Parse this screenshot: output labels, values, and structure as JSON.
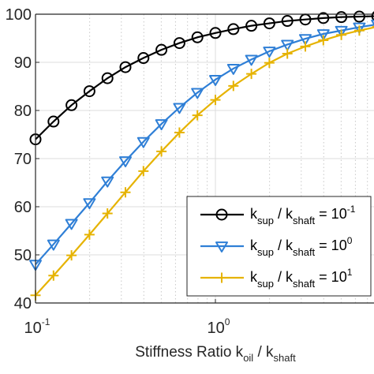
{
  "chart_data": {
    "type": "line",
    "x_scale": "log",
    "xlabel": {
      "base": "Stiffness Ratio k",
      "sub1": "oil",
      "mid": " / k",
      "sub2": "shaft"
    },
    "xlim": [
      0.1,
      10
    ],
    "ylim": [
      40,
      100
    ],
    "x_ticks": [
      {
        "value": 0.1,
        "base": "10",
        "exp": "-1"
      },
      {
        "value": 1,
        "base": "10",
        "exp": "0"
      }
    ],
    "y_ticks": [
      {
        "value": 40,
        "label": "40"
      },
      {
        "value": 50,
        "label": "50"
      },
      {
        "value": 60,
        "label": "60"
      },
      {
        "value": 70,
        "label": "70"
      },
      {
        "value": 80,
        "label": "80"
      },
      {
        "value": 90,
        "label": "90"
      },
      {
        "value": 100,
        "label": "100"
      }
    ],
    "grid": true,
    "legend_position": "lower-right",
    "series": [
      {
        "name": "k_sup / k_shaft = 10^-1",
        "legend": {
          "k1": "k",
          "sub1": "sup",
          "mid": " / k",
          "sub2": "shaft",
          "eq": " = 10",
          "exp": "-1"
        },
        "color": "#000000",
        "marker": "circle",
        "x": [
          0.1,
          0.1259,
          0.1585,
          0.1995,
          0.2512,
          0.3162,
          0.3981,
          0.5012,
          0.631,
          0.7943,
          1.0,
          1.259,
          1.585,
          1.995,
          2.512,
          3.162,
          3.981,
          5.012,
          6.31,
          7.943
        ],
        "y": [
          74.0,
          77.7,
          81.1,
          84.0,
          86.7,
          89.0,
          90.9,
          92.6,
          94.0,
          95.2,
          96.1,
          96.9,
          97.6,
          98.1,
          98.6,
          98.9,
          99.2,
          99.4,
          99.5,
          99.6
        ]
      },
      {
        "name": "k_sup / k_shaft = 10^0",
        "legend": {
          "k1": "k",
          "sub1": "sup",
          "mid": " / k",
          "sub2": "shaft",
          "eq": " = 10",
          "exp": "0"
        },
        "color": "#2f7fd6",
        "marker": "triangle-down",
        "x": [
          0.1,
          0.1259,
          0.1585,
          0.1995,
          0.2512,
          0.3162,
          0.3981,
          0.5012,
          0.631,
          0.7943,
          1.0,
          1.259,
          1.585,
          1.995,
          2.512,
          3.162,
          3.981,
          5.012,
          6.31,
          7.943
        ],
        "y": [
          48.0,
          52.2,
          56.5,
          60.8,
          65.3,
          69.5,
          73.5,
          77.2,
          80.6,
          83.7,
          86.4,
          88.7,
          90.6,
          92.3,
          93.7,
          94.9,
          95.9,
          96.6,
          97.3,
          97.9
        ]
      },
      {
        "name": "k_sup / k_shaft = 10^1",
        "legend": {
          "k1": "k",
          "sub1": "sup",
          "mid": " / k",
          "sub2": "shaft",
          "eq": " = 10",
          "exp": "1"
        },
        "color": "#e6b300",
        "marker": "plus",
        "x": [
          0.1,
          0.1259,
          0.1585,
          0.1995,
          0.2512,
          0.3162,
          0.3981,
          0.5012,
          0.631,
          0.7943,
          1.0,
          1.259,
          1.585,
          1.995,
          2.512,
          3.162,
          3.981,
          5.012,
          6.31,
          7.943
        ],
        "y": [
          41.6,
          45.7,
          49.9,
          54.2,
          58.6,
          63.0,
          67.4,
          71.5,
          75.4,
          79.0,
          82.2,
          85.1,
          87.6,
          89.9,
          91.8,
          93.3,
          94.6,
          95.7,
          96.6,
          97.4
        ]
      }
    ]
  }
}
